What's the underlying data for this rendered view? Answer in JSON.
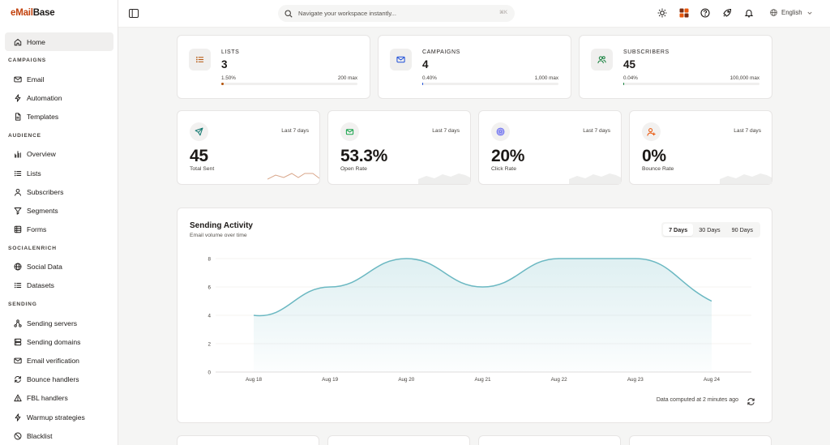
{
  "brand": {
    "part1": "eMail",
    "part2": "Base"
  },
  "sidebar": {
    "home": "Home",
    "sections": [
      {
        "title": "CAMPAIGNS",
        "items": [
          {
            "label": "Email",
            "icon": "mail-icon"
          },
          {
            "label": "Automation",
            "icon": "zap-icon"
          },
          {
            "label": "Templates",
            "icon": "file-icon"
          }
        ]
      },
      {
        "title": "AUDIENCE",
        "items": [
          {
            "label": "Overview",
            "icon": "bar-chart-icon"
          },
          {
            "label": "Lists",
            "icon": "list-icon"
          },
          {
            "label": "Subscribers",
            "icon": "user-icon"
          },
          {
            "label": "Segments",
            "icon": "filter-icon"
          },
          {
            "label": "Forms",
            "icon": "form-icon"
          }
        ]
      },
      {
        "title": "SOCIALENRICH",
        "items": [
          {
            "label": "Social Data",
            "icon": "globe-icon"
          },
          {
            "label": "Datasets",
            "icon": "list-icon"
          }
        ]
      },
      {
        "title": "SENDING",
        "items": [
          {
            "label": "Sending servers",
            "icon": "network-icon"
          },
          {
            "label": "Sending domains",
            "icon": "server-icon"
          },
          {
            "label": "Email verification",
            "icon": "mail-check-icon"
          },
          {
            "label": "Bounce handlers",
            "icon": "refresh-icon"
          },
          {
            "label": "FBL handlers",
            "icon": "alert-triangle-icon"
          },
          {
            "label": "Warmup strategies",
            "icon": "zap-icon"
          },
          {
            "label": "Blacklist",
            "icon": "ban-icon"
          }
        ]
      }
    ]
  },
  "topbar": {
    "search_placeholder": "Navigate your workspace instantly...",
    "shortcut": "⌘K",
    "language": "English"
  },
  "stats": [
    {
      "label": "LISTS",
      "value": "3",
      "pct": "1.50%",
      "max": "200 max",
      "fill": 0.015,
      "icon": "list-icon",
      "color": "#b45309"
    },
    {
      "label": "CAMPAIGNS",
      "value": "4",
      "pct": "0.40%",
      "max": "1,000 max",
      "fill": 0.004,
      "icon": "mail-icon",
      "color": "#1d4ed8"
    },
    {
      "label": "SUBSCRIBERS",
      "value": "45",
      "pct": "0.04%",
      "max": "100,000 max",
      "fill": 0.0004,
      "icon": "users-icon",
      "color": "#15803d"
    }
  ],
  "metrics": [
    {
      "period": "Last 7 days",
      "value": "45",
      "label": "Total Sent",
      "icon": "send-icon",
      "color": "#0f766e",
      "spark_color": "#d9a68a"
    },
    {
      "period": "Last 7 days",
      "value": "53.3%",
      "label": "Open Rate",
      "icon": "mail-open-icon",
      "color": "#16a34a",
      "spark_color": "#eeeeed"
    },
    {
      "period": "Last 7 days",
      "value": "20%",
      "label": "Click Rate",
      "icon": "target-icon",
      "color": "#6366f1",
      "spark_color": "#eeeeed"
    },
    {
      "period": "Last 7 days",
      "value": "0%",
      "label": "Bounce Rate",
      "icon": "user-plus-icon",
      "color": "#ea580c",
      "spark_color": "#eeeeed"
    }
  ],
  "activity": {
    "title": "Sending Activity",
    "subtitle": "Email volume over time",
    "ranges": [
      "7 Days",
      "30 Days",
      "90 Days"
    ],
    "selected_range": "7 Days",
    "computed_text": "Data computed at 2 minutes ago"
  },
  "chart_data": {
    "type": "area",
    "categories": [
      "Aug 18",
      "Aug 19",
      "Aug 20",
      "Aug 21",
      "Aug 22",
      "Aug 23",
      "Aug 24"
    ],
    "values": [
      4,
      6,
      8,
      6,
      8,
      8,
      5
    ],
    "ylim": [
      0,
      8
    ],
    "yticks": [
      0,
      2,
      4,
      6,
      8
    ],
    "grid": true,
    "color": "#6bb8c2"
  }
}
